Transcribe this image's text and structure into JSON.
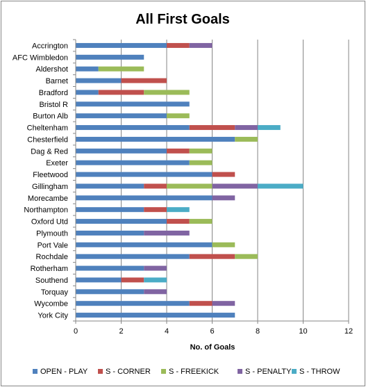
{
  "chart_data": {
    "type": "bar",
    "orientation": "horizontal",
    "stacked": true,
    "title": "All First Goals",
    "xlabel": "No. of Goals",
    "ylabel": "",
    "xlim": [
      0,
      12
    ],
    "x_ticks": [
      "0",
      "2",
      "4",
      "6",
      "8",
      "10",
      "12"
    ],
    "grid": "vertical major gridlines",
    "legend_position": "bottom",
    "categories": [
      "Accrington",
      "AFC Wimbledon",
      "Aldershot",
      "Barnet",
      "Bradford",
      "Bristol R",
      "Burton Alb",
      "Cheltenham",
      "Chesterfield",
      "Dag & Red",
      "Exeter",
      "Fleetwood",
      "Gillingham",
      "Morecambe",
      "Northampton",
      "Oxford Utd",
      "Plymouth",
      "Port Vale",
      "Rochdale",
      "Rotherham",
      "Southend",
      "Torquay",
      "Wycombe",
      "York City"
    ],
    "series": [
      {
        "name": "OPEN - PLAY",
        "color": "#4F81BD",
        "values": [
          4,
          3,
          1,
          2,
          1,
          5,
          4,
          5,
          7,
          4,
          5,
          6,
          3,
          6,
          3,
          4,
          3,
          6,
          5,
          3,
          2,
          3,
          5,
          7
        ]
      },
      {
        "name": "S - CORNER",
        "color": "#C0504D",
        "values": [
          1,
          0,
          0,
          2,
          2,
          0,
          0,
          2,
          0,
          1,
          0,
          1,
          1,
          0,
          1,
          1,
          0,
          0,
          2,
          0,
          1,
          0,
          1,
          0
        ]
      },
      {
        "name": "S - FREEKICK",
        "color": "#9BBB59",
        "values": [
          0,
          0,
          2,
          0,
          2,
          0,
          1,
          0,
          1,
          1,
          1,
          0,
          2,
          0,
          0,
          1,
          0,
          1,
          1,
          0,
          0,
          0,
          0,
          0
        ]
      },
      {
        "name": "S - PENALTY",
        "color": "#8064A2",
        "values": [
          1,
          0,
          0,
          0,
          0,
          0,
          0,
          1,
          0,
          0,
          0,
          0,
          2,
          1,
          0,
          0,
          2,
          0,
          0,
          1,
          0,
          1,
          1,
          0
        ]
      },
      {
        "name": "S - THROW",
        "color": "#4BACC6",
        "values": [
          0,
          0,
          0,
          0,
          0,
          0,
          0,
          1,
          0,
          0,
          0,
          0,
          2,
          0,
          1,
          0,
          0,
          0,
          0,
          0,
          1,
          0,
          0,
          0
        ]
      }
    ]
  }
}
